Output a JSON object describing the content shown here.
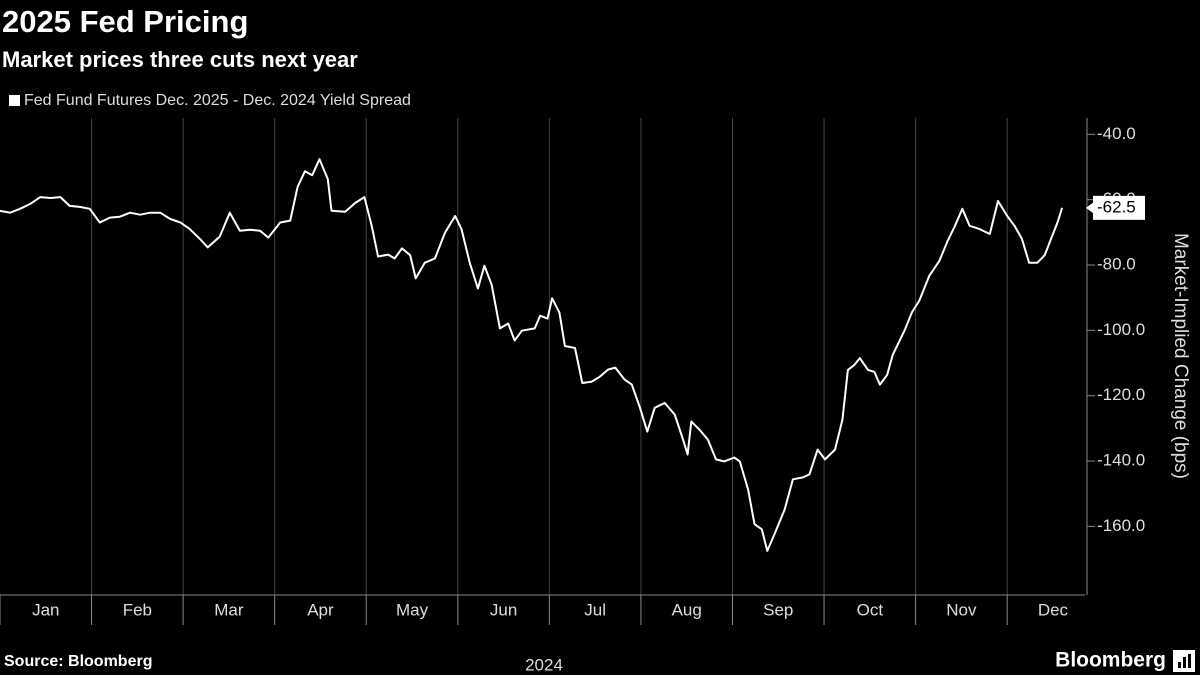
{
  "chart_data": {
    "type": "line",
    "title": "2025 Fed Pricing",
    "subtitle": "Market prices three cuts next year",
    "x_label": "2024",
    "y_label": "Market-Implied Change (bps)",
    "source": "Source: Bloomberg",
    "brand": "Bloomberg",
    "xlim": [
      0,
      11.85
    ],
    "xticks": [
      {
        "value": 0.5,
        "label": "Jan"
      },
      {
        "value": 1.5,
        "label": "Feb"
      },
      {
        "value": 2.5,
        "label": "Mar"
      },
      {
        "value": 3.5,
        "label": "Apr"
      },
      {
        "value": 4.5,
        "label": "May"
      },
      {
        "value": 5.5,
        "label": "Jun"
      },
      {
        "value": 6.5,
        "label": "Jul"
      },
      {
        "value": 7.5,
        "label": "Aug"
      },
      {
        "value": 8.5,
        "label": "Sep"
      },
      {
        "value": 9.5,
        "label": "Oct"
      },
      {
        "value": 10.5,
        "label": "Nov"
      },
      {
        "value": 11.5,
        "label": "Dec"
      }
    ],
    "ylim": [
      -181,
      -35
    ],
    "yticks": [
      {
        "value": -40,
        "label": "-40.0"
      },
      {
        "value": -60,
        "label": "-60.0"
      },
      {
        "value": -80,
        "label": "-80.0"
      },
      {
        "value": -100,
        "label": "-100.0"
      },
      {
        "value": -120,
        "label": "-120.0"
      },
      {
        "value": -140,
        "label": "-140.0"
      },
      {
        "value": -160,
        "label": "-160.0"
      }
    ],
    "grid": true,
    "series": [
      {
        "name": "Fed Fund Futures Dec. 2025 - Dec. 2024 Yield Spread",
        "color": "#ffffff",
        "x": [
          0,
          0.11,
          0.22,
          0.33,
          0.44,
          0.55,
          0.66,
          0.76,
          0.87,
          0.98,
          1.09,
          1.2,
          1.31,
          1.42,
          1.53,
          1.64,
          1.75,
          1.86,
          1.97,
          2.07,
          2.18,
          2.27,
          2.4,
          2.51,
          2.62,
          2.73,
          2.84,
          2.93,
          3.06,
          3.17,
          3.25,
          3.33,
          3.41,
          3.49,
          3.58,
          3.62,
          3.77,
          3.88,
          3.98,
          4.06,
          4.13,
          4.24,
          4.31,
          4.39,
          4.48,
          4.54,
          4.64,
          4.75,
          4.86,
          4.97,
          5.04,
          5.13,
          5.22,
          5.29,
          5.37,
          5.46,
          5.55,
          5.62,
          5.7,
          5.84,
          5.9,
          5.98,
          6.03,
          6.11,
          6.17,
          6.28,
          6.36,
          6.46,
          6.55,
          6.64,
          6.72,
          6.82,
          6.9,
          6.99,
          7.07,
          7.15,
          7.26,
          7.37,
          7.46,
          7.51,
          7.55,
          7.64,
          7.73,
          7.82,
          7.91,
          8.02,
          8.08,
          8.17,
          8.24,
          8.32,
          8.38,
          8.46,
          8.57,
          8.66,
          8.77,
          8.84,
          8.93,
          9.01,
          9.12,
          9.2,
          9.26,
          9.33,
          9.39,
          9.48,
          9.55,
          9.61,
          9.69,
          9.75,
          9.83,
          9.88,
          9.96,
          10.04,
          10.15,
          10.26,
          10.35,
          10.43,
          10.51,
          10.59,
          10.7,
          10.81,
          10.9,
          11.0,
          11.08,
          11.16,
          11.24,
          11.33,
          11.41,
          11.48,
          11.55,
          11.6
        ],
        "values": [
          -63.4,
          -64,
          -62.8,
          -61.3,
          -59.2,
          -59.5,
          -59.2,
          -61.9,
          -62.2,
          -62.8,
          -67,
          -65.5,
          -65.2,
          -64,
          -64.6,
          -64,
          -64,
          -65.9,
          -67,
          -68.9,
          -71.9,
          -74.6,
          -71.3,
          -64,
          -69.5,
          -69.2,
          -69.5,
          -71.6,
          -67,
          -66.4,
          -56.1,
          -51.3,
          -52.5,
          -47.6,
          -53.7,
          -63.4,
          -63.7,
          -61,
          -59.2,
          -68,
          -77.4,
          -76.8,
          -78,
          -74.9,
          -77,
          -84.1,
          -79.3,
          -78,
          -70.1,
          -65,
          -69,
          -79.3,
          -87.2,
          -80.2,
          -86.1,
          -99.4,
          -97.9,
          -103.1,
          -100.1,
          -99.4,
          -95.5,
          -96.4,
          -90.2,
          -94.5,
          -104.8,
          -105.4,
          -116.1,
          -115.7,
          -114.2,
          -112,
          -111.4,
          -115,
          -116.6,
          -123.7,
          -131,
          -123.7,
          -122.2,
          -125.8,
          -133.4,
          -138,
          -127.9,
          -130.4,
          -133.4,
          -139.5,
          -140.1,
          -138.9,
          -140.1,
          -148.7,
          -159.3,
          -160.9,
          -167.5,
          -162.3,
          -154.8,
          -145.6,
          -145,
          -144.1,
          -136.5,
          -139.5,
          -136.5,
          -127.4,
          -112.1,
          -110.6,
          -108.5,
          -112.1,
          -112.7,
          -116.6,
          -113.6,
          -107.5,
          -102.9,
          -100,
          -94.5,
          -90.9,
          -83.3,
          -78.7,
          -72.6,
          -68,
          -62.8,
          -68,
          -69,
          -70.5,
          -60.4,
          -65,
          -68,
          -71.9,
          -79.3,
          -79.3,
          -77,
          -71.9,
          -67,
          -62.5
        ]
      }
    ]
  }
}
